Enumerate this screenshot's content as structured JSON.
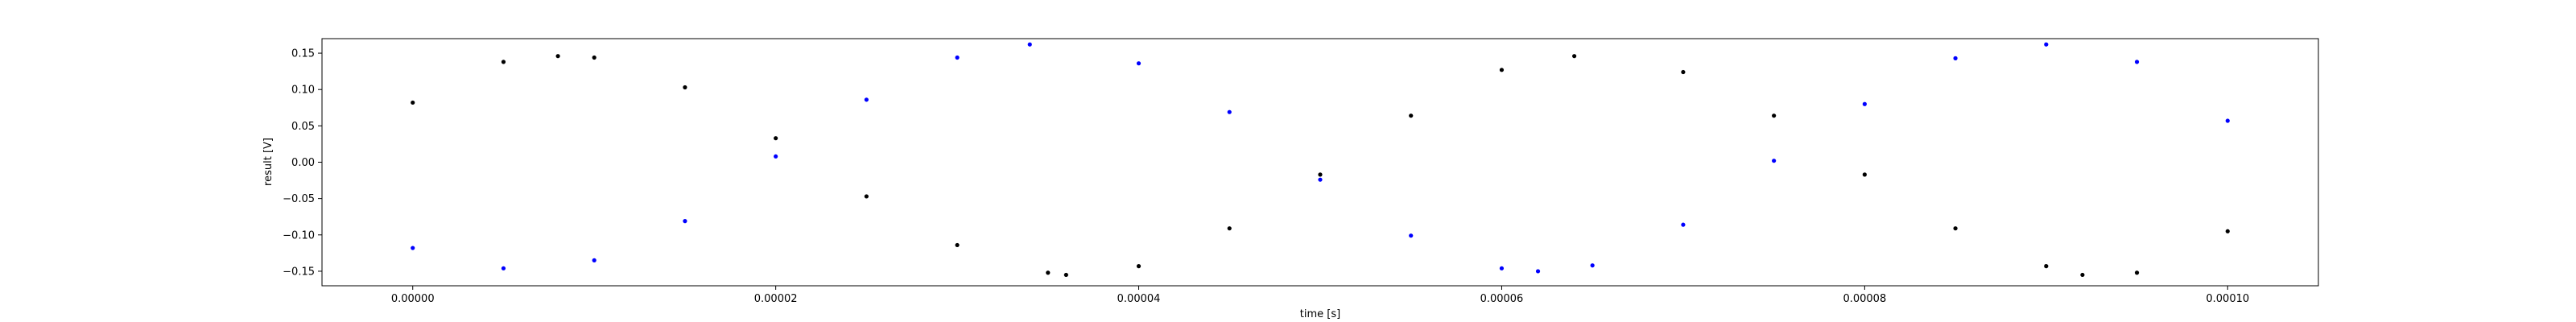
{
  "chart_data": {
    "type": "scatter",
    "title": "",
    "xlabel": "time [s]",
    "ylabel": "result [V]",
    "xlim": [
      -5e-06,
      0.000105
    ],
    "ylim": [
      -0.17,
      0.17
    ],
    "grid": false,
    "x_ticks": [
      {
        "value": 0.0,
        "label": "0.00000"
      },
      {
        "value": 2e-05,
        "label": "0.00002"
      },
      {
        "value": 4e-05,
        "label": "0.00004"
      },
      {
        "value": 6e-05,
        "label": "0.00006"
      },
      {
        "value": 8e-05,
        "label": "0.00008"
      },
      {
        "value": 0.0001,
        "label": "0.00010"
      }
    ],
    "y_ticks": [
      {
        "value": 0.15,
        "label": "0.15"
      },
      {
        "value": 0.1,
        "label": "0.10"
      },
      {
        "value": 0.05,
        "label": "0.05"
      },
      {
        "value": 0.0,
        "label": "0.00"
      },
      {
        "value": -0.05,
        "label": "−0.05"
      },
      {
        "value": -0.1,
        "label": "−0.10"
      },
      {
        "value": -0.15,
        "label": "−0.15"
      }
    ],
    "series": [
      {
        "color": "#000000",
        "x": [
          0.0,
          5e-06,
          8e-06,
          1e-05,
          1.5e-05,
          2e-05,
          2.5e-05,
          3e-05,
          3.5e-05,
          3.6e-05,
          4e-05,
          4.5e-05,
          5e-05,
          5.5e-05,
          6e-05,
          6.4e-05,
          7e-05,
          7.5e-05,
          8e-05,
          8.5e-05,
          9e-05,
          9.2e-05,
          9.5e-05,
          0.0001
        ],
        "values": [
          0.082,
          0.138,
          0.146,
          0.144,
          0.103,
          0.033,
          -0.047,
          -0.114,
          -0.152,
          -0.155,
          -0.143,
          -0.091,
          -0.017,
          0.064,
          0.127,
          0.146,
          0.124,
          0.064,
          -0.017,
          -0.091,
          -0.143,
          -0.155,
          -0.152,
          -0.095
        ]
      },
      {
        "color": "#0000ff",
        "x": [
          0.0,
          5e-06,
          1e-05,
          1.5e-05,
          2e-05,
          2.5e-05,
          3e-05,
          3.4e-05,
          4e-05,
          4.5e-05,
          5e-05,
          5.5e-05,
          6e-05,
          6.2e-05,
          6.5e-05,
          7e-05,
          7.5e-05,
          8e-05,
          8.5e-05,
          9e-05,
          9.5e-05,
          0.0001
        ],
        "values": [
          -0.118,
          -0.146,
          -0.135,
          -0.081,
          0.008,
          0.086,
          0.144,
          0.162,
          0.136,
          0.069,
          -0.024,
          -0.101,
          -0.146,
          -0.15,
          -0.142,
          -0.086,
          0.002,
          0.08,
          0.143,
          0.162,
          0.138,
          0.057
        ]
      }
    ]
  }
}
